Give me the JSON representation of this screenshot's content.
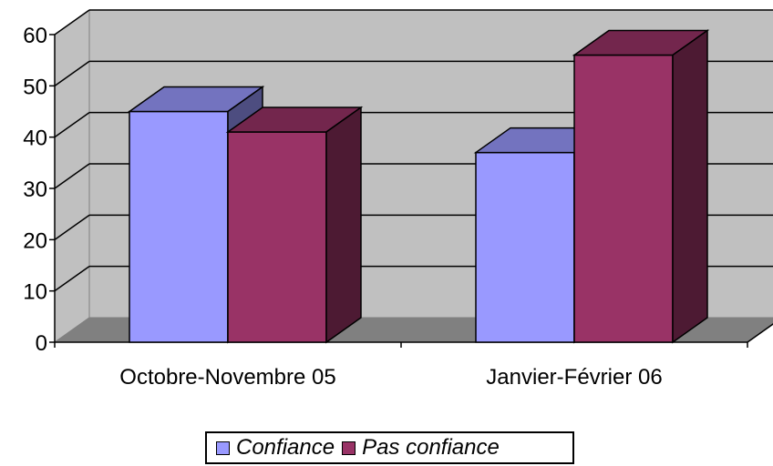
{
  "chart_data": {
    "type": "bar",
    "categories": [
      "Octobre-Novembre 05",
      "Janvier-Février 06"
    ],
    "series": [
      {
        "name": "Confiance",
        "values": [
          45,
          37
        ],
        "color": "#9999ff"
      },
      {
        "name": "Pas confiance",
        "values": [
          41,
          56
        ],
        "color": "#993366"
      }
    ],
    "ylim": [
      0,
      60
    ],
    "yticks": [
      0,
      10,
      20,
      30,
      40,
      50,
      60
    ],
    "grid": true,
    "legend_position": "bottom",
    "style": "3d-column"
  }
}
